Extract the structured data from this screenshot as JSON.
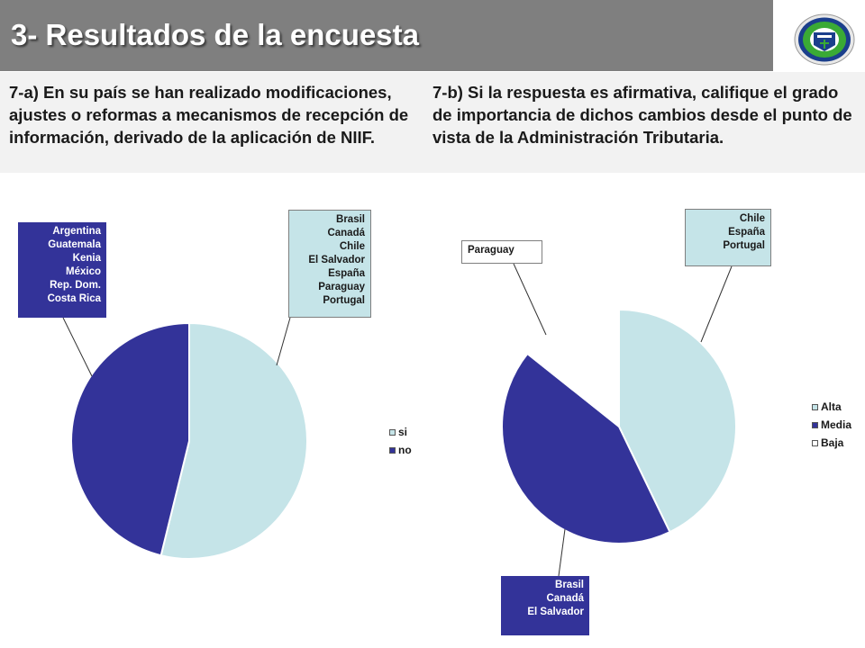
{
  "header": {
    "title": "3- Resultados de la encuesta"
  },
  "logo": {
    "icon": "institution-seal-icon",
    "colors": [
      "#1b3f8c",
      "#3aaa35"
    ]
  },
  "questions": {
    "a": "7-a) En su país se han realizado modificaciones, ajustes o reformas a mecanismos de recepción de información, derivado de la aplicación de NIIF.",
    "b": "7-b) Si la respuesta es afirmativa, califique el grado de importancia de dichos cambios desde el punto de vista de la Administración Tributaria."
  },
  "colors": {
    "alta": "#c5e4e8",
    "media": "#333399",
    "baja": "#ffffff",
    "si": "#c5e4e8",
    "no": "#333399"
  },
  "chart_data": [
    {
      "type": "pie",
      "legend": "right",
      "labels": [
        "si",
        "no"
      ],
      "values": [
        7,
        6
      ],
      "annotations": {
        "si": [
          "Brasil",
          "Canadá",
          "Chile",
          "El Salvador",
          "España",
          "Paraguay",
          "Portugal"
        ],
        "no": [
          "Argentina",
          "Guatemala",
          "Kenia",
          "México",
          "Rep. Dom.",
          "Costa Rica"
        ]
      }
    },
    {
      "type": "pie",
      "legend": "right",
      "labels": [
        "Alta",
        "Media",
        "Baja"
      ],
      "values": [
        3,
        3,
        1
      ],
      "annotations": {
        "Alta": [
          "Chile",
          "España",
          "Portugal"
        ],
        "Media": [
          "Brasil",
          "Canadá",
          "El Salvador"
        ],
        "Baja": [
          "Paraguay"
        ]
      }
    }
  ]
}
